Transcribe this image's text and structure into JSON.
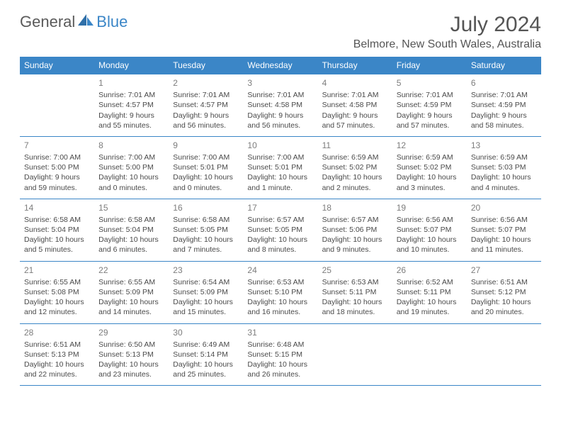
{
  "brand": {
    "part1": "General",
    "part2": "Blue"
  },
  "title": "July 2024",
  "location": "Belmore, New South Wales, Australia",
  "colors": {
    "header_bg": "#3b86c7",
    "header_text": "#ffffff",
    "border": "#3b86c7",
    "body_text": "#4a4a4a",
    "daynum": "#7d7d7d",
    "title_text": "#555555",
    "logo_gray": "#5a5a5a",
    "logo_blue": "#3b86c7",
    "page_bg": "#ffffff"
  },
  "day_headers": [
    "Sunday",
    "Monday",
    "Tuesday",
    "Wednesday",
    "Thursday",
    "Friday",
    "Saturday"
  ],
  "weeks": [
    [
      {
        "n": "",
        "sr": "",
        "ss": "",
        "dl": ""
      },
      {
        "n": "1",
        "sr": "Sunrise: 7:01 AM",
        "ss": "Sunset: 4:57 PM",
        "dl": "Daylight: 9 hours and 55 minutes."
      },
      {
        "n": "2",
        "sr": "Sunrise: 7:01 AM",
        "ss": "Sunset: 4:57 PM",
        "dl": "Daylight: 9 hours and 56 minutes."
      },
      {
        "n": "3",
        "sr": "Sunrise: 7:01 AM",
        "ss": "Sunset: 4:58 PM",
        "dl": "Daylight: 9 hours and 56 minutes."
      },
      {
        "n": "4",
        "sr": "Sunrise: 7:01 AM",
        "ss": "Sunset: 4:58 PM",
        "dl": "Daylight: 9 hours and 57 minutes."
      },
      {
        "n": "5",
        "sr": "Sunrise: 7:01 AM",
        "ss": "Sunset: 4:59 PM",
        "dl": "Daylight: 9 hours and 57 minutes."
      },
      {
        "n": "6",
        "sr": "Sunrise: 7:01 AM",
        "ss": "Sunset: 4:59 PM",
        "dl": "Daylight: 9 hours and 58 minutes."
      }
    ],
    [
      {
        "n": "7",
        "sr": "Sunrise: 7:00 AM",
        "ss": "Sunset: 5:00 PM",
        "dl": "Daylight: 9 hours and 59 minutes."
      },
      {
        "n": "8",
        "sr": "Sunrise: 7:00 AM",
        "ss": "Sunset: 5:00 PM",
        "dl": "Daylight: 10 hours and 0 minutes."
      },
      {
        "n": "9",
        "sr": "Sunrise: 7:00 AM",
        "ss": "Sunset: 5:01 PM",
        "dl": "Daylight: 10 hours and 0 minutes."
      },
      {
        "n": "10",
        "sr": "Sunrise: 7:00 AM",
        "ss": "Sunset: 5:01 PM",
        "dl": "Daylight: 10 hours and 1 minute."
      },
      {
        "n": "11",
        "sr": "Sunrise: 6:59 AM",
        "ss": "Sunset: 5:02 PM",
        "dl": "Daylight: 10 hours and 2 minutes."
      },
      {
        "n": "12",
        "sr": "Sunrise: 6:59 AM",
        "ss": "Sunset: 5:02 PM",
        "dl": "Daylight: 10 hours and 3 minutes."
      },
      {
        "n": "13",
        "sr": "Sunrise: 6:59 AM",
        "ss": "Sunset: 5:03 PM",
        "dl": "Daylight: 10 hours and 4 minutes."
      }
    ],
    [
      {
        "n": "14",
        "sr": "Sunrise: 6:58 AM",
        "ss": "Sunset: 5:04 PM",
        "dl": "Daylight: 10 hours and 5 minutes."
      },
      {
        "n": "15",
        "sr": "Sunrise: 6:58 AM",
        "ss": "Sunset: 5:04 PM",
        "dl": "Daylight: 10 hours and 6 minutes."
      },
      {
        "n": "16",
        "sr": "Sunrise: 6:58 AM",
        "ss": "Sunset: 5:05 PM",
        "dl": "Daylight: 10 hours and 7 minutes."
      },
      {
        "n": "17",
        "sr": "Sunrise: 6:57 AM",
        "ss": "Sunset: 5:05 PM",
        "dl": "Daylight: 10 hours and 8 minutes."
      },
      {
        "n": "18",
        "sr": "Sunrise: 6:57 AM",
        "ss": "Sunset: 5:06 PM",
        "dl": "Daylight: 10 hours and 9 minutes."
      },
      {
        "n": "19",
        "sr": "Sunrise: 6:56 AM",
        "ss": "Sunset: 5:07 PM",
        "dl": "Daylight: 10 hours and 10 minutes."
      },
      {
        "n": "20",
        "sr": "Sunrise: 6:56 AM",
        "ss": "Sunset: 5:07 PM",
        "dl": "Daylight: 10 hours and 11 minutes."
      }
    ],
    [
      {
        "n": "21",
        "sr": "Sunrise: 6:55 AM",
        "ss": "Sunset: 5:08 PM",
        "dl": "Daylight: 10 hours and 12 minutes."
      },
      {
        "n": "22",
        "sr": "Sunrise: 6:55 AM",
        "ss": "Sunset: 5:09 PM",
        "dl": "Daylight: 10 hours and 14 minutes."
      },
      {
        "n": "23",
        "sr": "Sunrise: 6:54 AM",
        "ss": "Sunset: 5:09 PM",
        "dl": "Daylight: 10 hours and 15 minutes."
      },
      {
        "n": "24",
        "sr": "Sunrise: 6:53 AM",
        "ss": "Sunset: 5:10 PM",
        "dl": "Daylight: 10 hours and 16 minutes."
      },
      {
        "n": "25",
        "sr": "Sunrise: 6:53 AM",
        "ss": "Sunset: 5:11 PM",
        "dl": "Daylight: 10 hours and 18 minutes."
      },
      {
        "n": "26",
        "sr": "Sunrise: 6:52 AM",
        "ss": "Sunset: 5:11 PM",
        "dl": "Daylight: 10 hours and 19 minutes."
      },
      {
        "n": "27",
        "sr": "Sunrise: 6:51 AM",
        "ss": "Sunset: 5:12 PM",
        "dl": "Daylight: 10 hours and 20 minutes."
      }
    ],
    [
      {
        "n": "28",
        "sr": "Sunrise: 6:51 AM",
        "ss": "Sunset: 5:13 PM",
        "dl": "Daylight: 10 hours and 22 minutes."
      },
      {
        "n": "29",
        "sr": "Sunrise: 6:50 AM",
        "ss": "Sunset: 5:13 PM",
        "dl": "Daylight: 10 hours and 23 minutes."
      },
      {
        "n": "30",
        "sr": "Sunrise: 6:49 AM",
        "ss": "Sunset: 5:14 PM",
        "dl": "Daylight: 10 hours and 25 minutes."
      },
      {
        "n": "31",
        "sr": "Sunrise: 6:48 AM",
        "ss": "Sunset: 5:15 PM",
        "dl": "Daylight: 10 hours and 26 minutes."
      },
      {
        "n": "",
        "sr": "",
        "ss": "",
        "dl": ""
      },
      {
        "n": "",
        "sr": "",
        "ss": "",
        "dl": ""
      },
      {
        "n": "",
        "sr": "",
        "ss": "",
        "dl": ""
      }
    ]
  ]
}
